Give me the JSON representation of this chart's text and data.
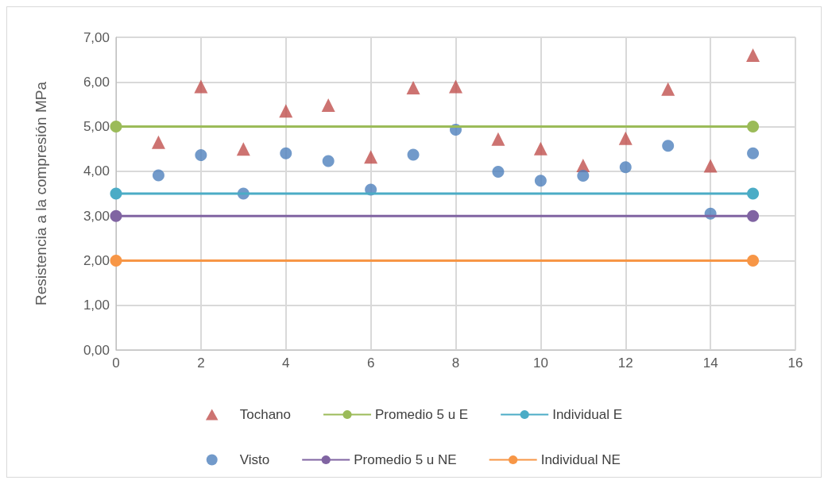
{
  "chart_data": {
    "type": "scatter",
    "ylabel": "Resistencia a la compresión MPa",
    "xlim": [
      0,
      16
    ],
    "xticks": [
      0,
      2,
      4,
      6,
      8,
      10,
      12,
      14,
      16
    ],
    "ylim": [
      0,
      7
    ],
    "yticks": [
      {
        "value": 0,
        "label": "0,00"
      },
      {
        "value": 1,
        "label": "1,00"
      },
      {
        "value": 2,
        "label": "2,00"
      },
      {
        "value": 3,
        "label": "3,00"
      },
      {
        "value": 4,
        "label": "4,00"
      },
      {
        "value": 5,
        "label": "5,00"
      },
      {
        "value": 6,
        "label": "6,00"
      },
      {
        "value": 7,
        "label": "7,00"
      }
    ],
    "grid": true,
    "legend": "bottom",
    "series": [
      {
        "name": "Tochano",
        "marker": "triangle",
        "color": "#c0504d",
        "x": [
          1,
          2,
          3,
          4,
          5,
          6,
          7,
          8,
          9,
          10,
          11,
          12,
          13,
          14,
          15
        ],
        "values": [
          4.65,
          5.9,
          4.5,
          5.35,
          5.48,
          4.32,
          5.87,
          5.9,
          4.72,
          4.51,
          4.13,
          4.74,
          5.84,
          4.12,
          6.6
        ]
      },
      {
        "name": "Promedio 5 u E",
        "type": "line",
        "marker": "circle",
        "color": "#9bbb59",
        "x": [
          0,
          15
        ],
        "values": [
          5,
          5
        ]
      },
      {
        "name": "Individual E",
        "type": "line",
        "marker": "circle",
        "color": "#4bacc6",
        "x": [
          0,
          15
        ],
        "values": [
          3.5,
          3.5
        ]
      },
      {
        "name": "Visto",
        "marker": "circle",
        "color": "#4f81bd",
        "x": [
          1,
          2,
          3,
          4,
          5,
          6,
          7,
          8,
          9,
          10,
          11,
          12,
          13,
          14,
          15
        ],
        "values": [
          3.91,
          4.36,
          3.5,
          4.4,
          4.23,
          3.59,
          4.37,
          4.93,
          3.99,
          3.79,
          3.9,
          4.09,
          4.57,
          3.05,
          4.4
        ]
      },
      {
        "name": "Promedio 5 u NE",
        "type": "line",
        "marker": "circle",
        "color": "#8064a2",
        "x": [
          0,
          15
        ],
        "values": [
          3,
          3
        ]
      },
      {
        "name": "Individual NE",
        "type": "line",
        "marker": "circle",
        "color": "#f79646",
        "x": [
          0,
          15
        ],
        "values": [
          2,
          2
        ]
      }
    ]
  }
}
